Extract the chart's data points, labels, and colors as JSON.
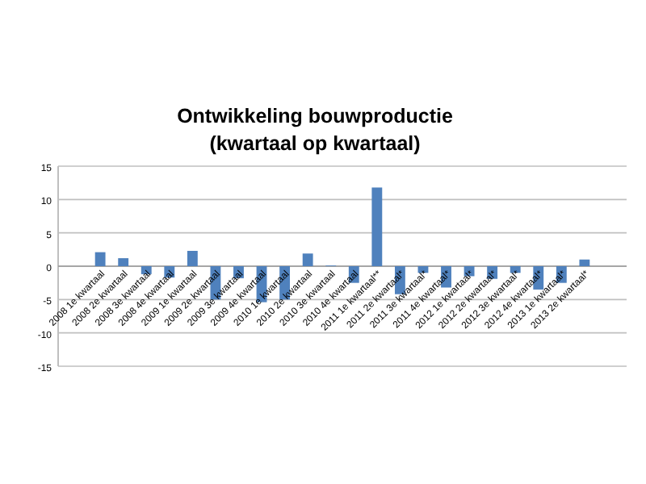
{
  "chart_data": {
    "type": "bar",
    "title": "Ontwikkeling bouwproductie\n(kwartaal op kwartaal)",
    "categories": [
      "2008 1e kwartaal",
      "2008 2e kwartaal",
      "2008 3e kwartaal",
      "2008 4e kwartaal",
      "2009 1e kwartaal",
      "2009 2e kwartaal",
      "2009 3e kwartaal",
      "2009 4e kwartaal",
      "2010 1e kwartaal",
      "2010 2e kwartaal",
      "2010 3e kwartaal",
      "2010 4e kwartaal",
      "2011 1e kwartaal**",
      "2011 2e kwartaal*",
      "2011 3e kwartaal*",
      "2011 4e kwartaal*",
      "2012 1e kwartaal*",
      "2012 2e kwartaal*",
      "2012 3e kwartaal*",
      "2012 4e kwartaal*",
      "2013 1e kwartaal*",
      "2013 2e kwartaal*"
    ],
    "values": [
      2.1,
      1.2,
      -1.2,
      -1.7,
      2.3,
      -5,
      -1.8,
      -5.4,
      -5,
      1.9,
      0.1,
      -2.5,
      11.8,
      -4.2,
      -1,
      -3.2,
      -1.5,
      -1.9,
      -1,
      -3.5,
      -2.5,
      1
    ],
    "color": "#4f81bd",
    "ylim": [
      -15,
      15
    ],
    "yticks": [
      -15,
      -10,
      -5,
      0,
      5,
      10,
      15
    ],
    "grid": "y"
  }
}
